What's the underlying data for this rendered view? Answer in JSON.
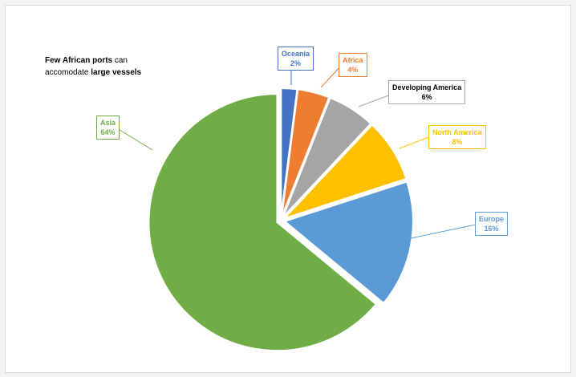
{
  "chart_data": {
    "type": "pie",
    "title_parts": [
      {
        "text": "Few African ports",
        "bold": true
      },
      {
        "text": " can",
        "bold": false
      },
      {
        "text": "accomodate ",
        "bold": false,
        "newline": true
      },
      {
        "text": "large vessels",
        "bold": true
      }
    ],
    "slices": [
      {
        "name": "Oceania",
        "value": 2,
        "label": "2%",
        "color": "#4472C4"
      },
      {
        "name": "Africa",
        "value": 4,
        "label": "4%",
        "color": "#ED7D31"
      },
      {
        "name": "Developing America",
        "value": 6,
        "label": "6%",
        "color": "#A5A5A5",
        "label_color": "#000000"
      },
      {
        "name": "North America",
        "value": 8,
        "label": "8%",
        "color": "#FFC000"
      },
      {
        "name": "Europe",
        "value": 16,
        "label": "16%",
        "color": "#5B9BD5"
      },
      {
        "name": "Asia",
        "value": 64,
        "label": "64%",
        "color": "#70AD47"
      }
    ],
    "start_angle": "top, clockwise",
    "legend": "none"
  }
}
